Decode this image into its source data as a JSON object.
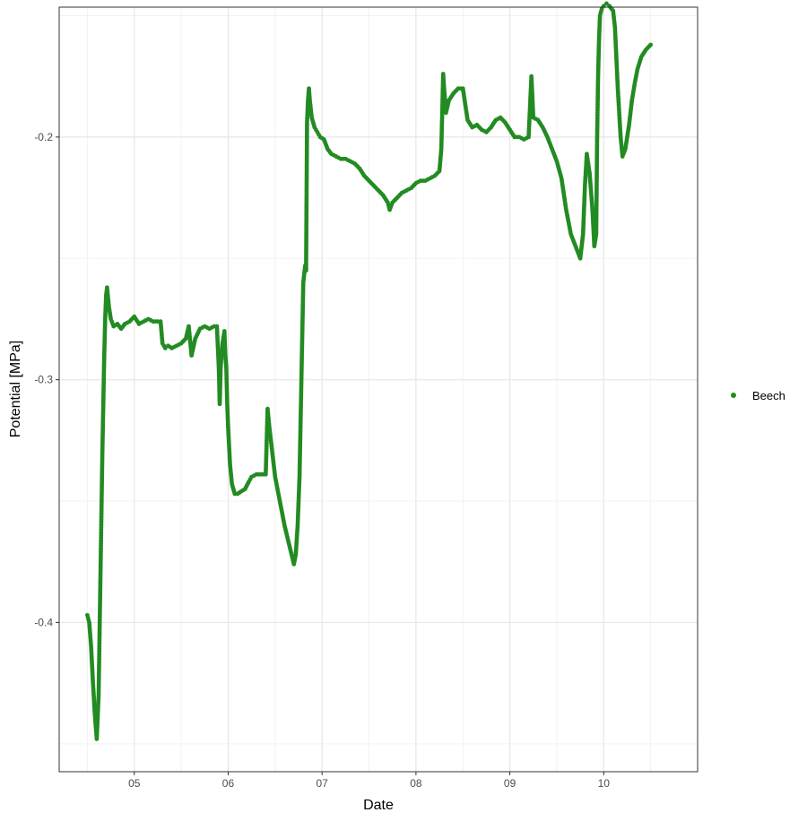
{
  "colors": {
    "series": "#228b22",
    "grid_major": "#e6e6e6",
    "grid_minor": "#f2f2f2",
    "panel_border": "#333333"
  },
  "chart_data": {
    "type": "scatter",
    "title": "",
    "xlabel": "Date",
    "ylabel": "Potential [MPa]",
    "x_unit": "month",
    "xlim": [
      4.2,
      11.0
    ],
    "ylim": [
      -0.4615,
      -0.1465
    ],
    "x_ticks": [
      5,
      6,
      7,
      8,
      9,
      10
    ],
    "x_tick_labels": [
      "05",
      "06",
      "07",
      "08",
      "09",
      "10"
    ],
    "y_ticks": [
      -0.4,
      -0.3,
      -0.2
    ],
    "y_tick_labels": [
      "-0.4",
      "-0.3",
      "-0.2"
    ],
    "grid": true,
    "legend_position": "right",
    "series": [
      {
        "name": "Beech",
        "points": [
          [
            4.5,
            -0.397
          ],
          [
            4.52,
            -0.4
          ],
          [
            4.54,
            -0.41
          ],
          [
            4.56,
            -0.425
          ],
          [
            4.58,
            -0.438
          ],
          [
            4.6,
            -0.448
          ],
          [
            4.62,
            -0.43
          ],
          [
            4.63,
            -0.405
          ],
          [
            4.64,
            -0.38
          ],
          [
            4.65,
            -0.355
          ],
          [
            4.66,
            -0.33
          ],
          [
            4.67,
            -0.31
          ],
          [
            4.68,
            -0.29
          ],
          [
            4.69,
            -0.275
          ],
          [
            4.7,
            -0.265
          ],
          [
            4.71,
            -0.262
          ],
          [
            4.73,
            -0.27
          ],
          [
            4.75,
            -0.275
          ],
          [
            4.78,
            -0.278
          ],
          [
            4.82,
            -0.277
          ],
          [
            4.86,
            -0.279
          ],
          [
            4.9,
            -0.277
          ],
          [
            4.95,
            -0.276
          ],
          [
            5.0,
            -0.274
          ],
          [
            5.05,
            -0.277
          ],
          [
            5.1,
            -0.276
          ],
          [
            5.15,
            -0.275
          ],
          [
            5.2,
            -0.276
          ],
          [
            5.25,
            -0.276
          ],
          [
            5.28,
            -0.276
          ],
          [
            5.3,
            -0.285
          ],
          [
            5.33,
            -0.287
          ],
          [
            5.36,
            -0.286
          ],
          [
            5.4,
            -0.287
          ],
          [
            5.45,
            -0.286
          ],
          [
            5.5,
            -0.285
          ],
          [
            5.55,
            -0.283
          ],
          [
            5.58,
            -0.278
          ],
          [
            5.61,
            -0.29
          ],
          [
            5.65,
            -0.283
          ],
          [
            5.7,
            -0.279
          ],
          [
            5.75,
            -0.278
          ],
          [
            5.8,
            -0.279
          ],
          [
            5.85,
            -0.278
          ],
          [
            5.88,
            -0.278
          ],
          [
            5.9,
            -0.295
          ],
          [
            5.91,
            -0.31
          ],
          [
            5.92,
            -0.295
          ],
          [
            5.94,
            -0.285
          ],
          [
            5.96,
            -0.28
          ],
          [
            5.97,
            -0.29
          ],
          [
            5.98,
            -0.295
          ],
          [
            5.99,
            -0.31
          ],
          [
            6.0,
            -0.32
          ],
          [
            6.02,
            -0.335
          ],
          [
            6.04,
            -0.343
          ],
          [
            6.07,
            -0.347
          ],
          [
            6.1,
            -0.347
          ],
          [
            6.14,
            -0.346
          ],
          [
            6.18,
            -0.345
          ],
          [
            6.22,
            -0.342
          ],
          [
            6.25,
            -0.34
          ],
          [
            6.3,
            -0.339
          ],
          [
            6.35,
            -0.339
          ],
          [
            6.4,
            -0.339
          ],
          [
            6.42,
            -0.312
          ],
          [
            6.44,
            -0.32
          ],
          [
            6.47,
            -0.33
          ],
          [
            6.5,
            -0.34
          ],
          [
            6.55,
            -0.35
          ],
          [
            6.6,
            -0.36
          ],
          [
            6.65,
            -0.368
          ],
          [
            6.7,
            -0.376
          ],
          [
            6.72,
            -0.372
          ],
          [
            6.74,
            -0.36
          ],
          [
            6.76,
            -0.34
          ],
          [
            6.78,
            -0.3
          ],
          [
            6.8,
            -0.26
          ],
          [
            6.82,
            -0.253
          ],
          [
            6.83,
            -0.255
          ],
          [
            6.84,
            -0.194
          ],
          [
            6.85,
            -0.185
          ],
          [
            6.86,
            -0.18
          ],
          [
            6.87,
            -0.185
          ],
          [
            6.89,
            -0.192
          ],
          [
            6.92,
            -0.196
          ],
          [
            6.95,
            -0.198
          ],
          [
            6.98,
            -0.2
          ],
          [
            7.02,
            -0.201
          ],
          [
            7.06,
            -0.205
          ],
          [
            7.1,
            -0.207
          ],
          [
            7.15,
            -0.208
          ],
          [
            7.2,
            -0.209
          ],
          [
            7.25,
            -0.209
          ],
          [
            7.3,
            -0.21
          ],
          [
            7.35,
            -0.211
          ],
          [
            7.4,
            -0.213
          ],
          [
            7.45,
            -0.216
          ],
          [
            7.5,
            -0.218
          ],
          [
            7.55,
            -0.22
          ],
          [
            7.6,
            -0.222
          ],
          [
            7.65,
            -0.224
          ],
          [
            7.7,
            -0.227
          ],
          [
            7.72,
            -0.23
          ],
          [
            7.75,
            -0.227
          ],
          [
            7.8,
            -0.225
          ],
          [
            7.85,
            -0.223
          ],
          [
            7.9,
            -0.222
          ],
          [
            7.95,
            -0.221
          ],
          [
            8.0,
            -0.219
          ],
          [
            8.05,
            -0.218
          ],
          [
            8.1,
            -0.218
          ],
          [
            8.15,
            -0.217
          ],
          [
            8.2,
            -0.216
          ],
          [
            8.25,
            -0.214
          ],
          [
            8.27,
            -0.205
          ],
          [
            8.28,
            -0.19
          ],
          [
            8.29,
            -0.174
          ],
          [
            8.3,
            -0.18
          ],
          [
            8.32,
            -0.19
          ],
          [
            8.35,
            -0.185
          ],
          [
            8.4,
            -0.182
          ],
          [
            8.45,
            -0.18
          ],
          [
            8.5,
            -0.18
          ],
          [
            8.55,
            -0.193
          ],
          [
            8.6,
            -0.196
          ],
          [
            8.65,
            -0.195
          ],
          [
            8.7,
            -0.197
          ],
          [
            8.75,
            -0.198
          ],
          [
            8.8,
            -0.196
          ],
          [
            8.85,
            -0.193
          ],
          [
            8.9,
            -0.192
          ],
          [
            8.95,
            -0.194
          ],
          [
            9.0,
            -0.197
          ],
          [
            9.05,
            -0.2
          ],
          [
            9.1,
            -0.2
          ],
          [
            9.15,
            -0.201
          ],
          [
            9.2,
            -0.2
          ],
          [
            9.23,
            -0.175
          ],
          [
            9.25,
            -0.192
          ],
          [
            9.3,
            -0.193
          ],
          [
            9.35,
            -0.196
          ],
          [
            9.4,
            -0.2
          ],
          [
            9.45,
            -0.205
          ],
          [
            9.5,
            -0.21
          ],
          [
            9.55,
            -0.217
          ],
          [
            9.6,
            -0.23
          ],
          [
            9.65,
            -0.24
          ],
          [
            9.7,
            -0.245
          ],
          [
            9.75,
            -0.25
          ],
          [
            9.78,
            -0.24
          ],
          [
            9.8,
            -0.22
          ],
          [
            9.82,
            -0.207
          ],
          [
            9.85,
            -0.215
          ],
          [
            9.88,
            -0.23
          ],
          [
            9.9,
            -0.245
          ],
          [
            9.92,
            -0.24
          ],
          [
            9.93,
            -0.2
          ],
          [
            9.94,
            -0.175
          ],
          [
            9.95,
            -0.16
          ],
          [
            9.96,
            -0.15
          ],
          [
            9.98,
            -0.147
          ],
          [
            10.0,
            -0.146
          ],
          [
            10.03,
            -0.145
          ],
          [
            10.06,
            -0.146
          ],
          [
            10.1,
            -0.148
          ],
          [
            10.12,
            -0.155
          ],
          [
            10.15,
            -0.18
          ],
          [
            10.18,
            -0.2
          ],
          [
            10.2,
            -0.208
          ],
          [
            10.23,
            -0.205
          ],
          [
            10.27,
            -0.195
          ],
          [
            10.3,
            -0.185
          ],
          [
            10.33,
            -0.178
          ],
          [
            10.36,
            -0.172
          ],
          [
            10.4,
            -0.167
          ],
          [
            10.45,
            -0.164
          ],
          [
            10.5,
            -0.162
          ]
        ]
      }
    ]
  }
}
